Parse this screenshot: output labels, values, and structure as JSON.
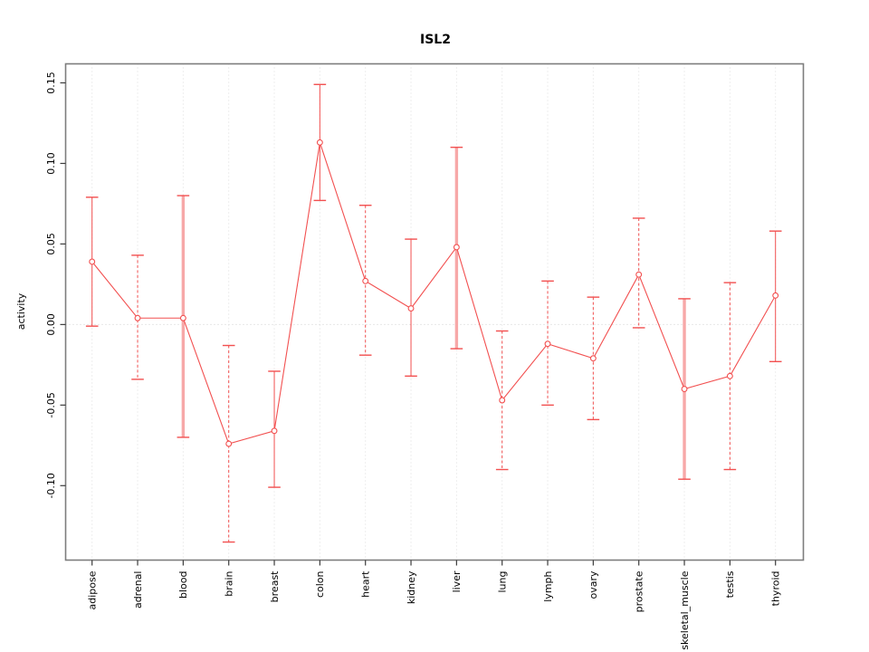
{
  "window": {
    "background": "#ffffff"
  },
  "chart_data": {
    "type": "line",
    "subtype": "points-with-error-bars",
    "title": "ISL2",
    "xlabel": "",
    "ylabel": "activity",
    "categories": [
      "adipose",
      "adrenal",
      "blood",
      "brain",
      "breast",
      "colon",
      "heart",
      "kidney",
      "liver",
      "lung",
      "lymph",
      "ovary",
      "prostate",
      "skeletal_muscle",
      "testis",
      "thyroid"
    ],
    "series": [
      {
        "name": "activity",
        "values": [
          0.039,
          0.004,
          0.004,
          -0.074,
          -0.066,
          0.113,
          0.027,
          0.01,
          0.048,
          -0.047,
          -0.012,
          -0.021,
          0.031,
          -0.04,
          -0.032,
          0.018
        ],
        "upper": [
          0.079,
          0.043,
          0.08,
          -0.013,
          -0.029,
          0.149,
          0.074,
          0.053,
          0.11,
          -0.004,
          0.027,
          0.017,
          0.066,
          0.016,
          0.026,
          0.058
        ],
        "lower": [
          -0.001,
          -0.034,
          -0.07,
          -0.135,
          -0.101,
          0.077,
          -0.019,
          -0.032,
          -0.015,
          -0.09,
          -0.05,
          -0.059,
          -0.002,
          -0.096,
          -0.09,
          -0.023
        ],
        "bar_styles": [
          "solid",
          "dashed",
          "thick",
          "dashed",
          "solid",
          "solid",
          "dashed",
          "solid",
          "thick",
          "dashed",
          "dashed",
          "dashed",
          "dashed",
          "thick",
          "dashed",
          "solid"
        ]
      }
    ],
    "yticks": [
      0.15,
      0.1,
      0.05,
      0.0,
      -0.05,
      -0.1
    ],
    "ytick_labels": [
      "0.15",
      "0.10",
      "0.05",
      "0.00",
      "-0.05",
      "-0.10"
    ],
    "ylim": [
      -0.1462,
      0.1618
    ],
    "grid": {
      "vertical_dotted": true,
      "horizontal": "zero-line-only"
    },
    "legend": "none",
    "colors": {
      "series": "#f25050",
      "thick_bar": "#f7a8a8",
      "point_fill": "#ffffff",
      "grid": "#dcdcdc",
      "zero_line": "#d0d0d0",
      "frame": "#7d7d7d",
      "tick": "#3c3c3c",
      "text": "#000000"
    }
  }
}
